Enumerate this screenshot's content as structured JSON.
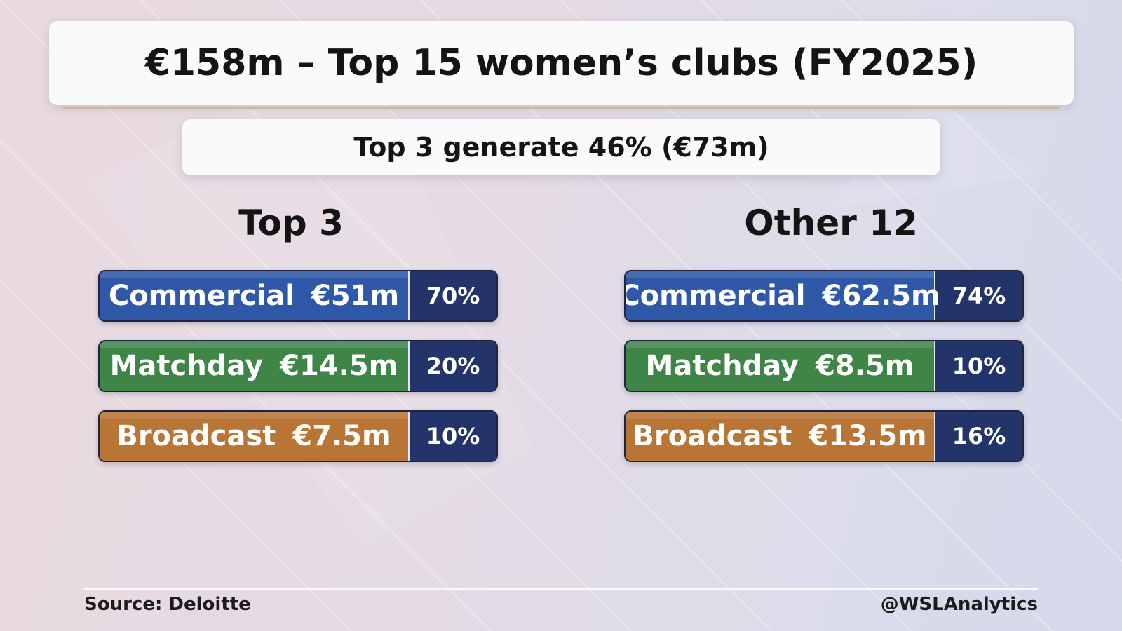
{
  "title": "€158m – Top 15 women’s clubs (FY2025)",
  "subtitle": "Top 3 generate 46% (€73m)",
  "groups": [
    {
      "heading": "Top 3",
      "rows": [
        {
          "label": "Commercial",
          "value": "€51m",
          "percent": "70%",
          "color": "#2f58a8"
        },
        {
          "label": "Matchday",
          "value": "€14.5m",
          "percent": "20%",
          "color": "#3f8548"
        },
        {
          "label": "Broadcast",
          "value": "€7.5m",
          "percent": "10%",
          "color": "#b87536"
        }
      ]
    },
    {
      "heading": "Other 12",
      "rows": [
        {
          "label": "Commercial",
          "value": "€62.5m",
          "percent": "74%",
          "color": "#2f58a8"
        },
        {
          "label": "Matchday",
          "value": "€8.5m",
          "percent": "10%",
          "color": "#3f8548"
        },
        {
          "label": "Broadcast",
          "value": "€13.5m",
          "percent": "16%",
          "color": "#b87536"
        }
      ]
    }
  ],
  "footer": {
    "source": "Source: Deloitte",
    "handle": "@WSLAnalytics"
  }
}
